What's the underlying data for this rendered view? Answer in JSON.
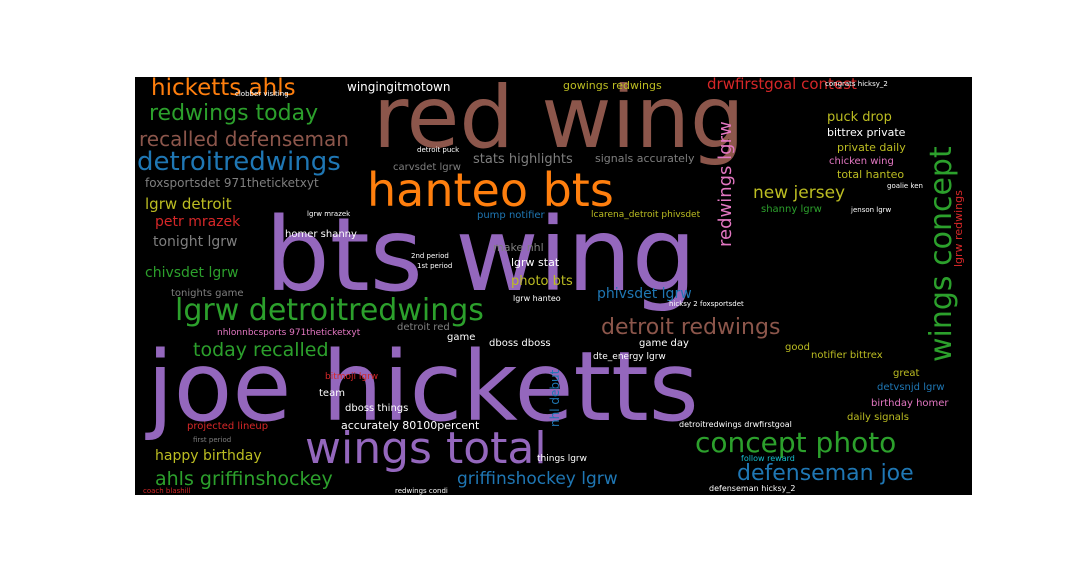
{
  "wordcloud": {
    "background": "#000000",
    "palette": {
      "purple": "#9467bd",
      "brown": "#8c564b",
      "orange": "#ff7f0e",
      "green": "#2ca02c",
      "blue": "#1f77b4",
      "red": "#d62728",
      "gray": "#7f7f7f",
      "olive": "#bcbd22",
      "pink": "#e377c2",
      "cyan": "#17becf"
    },
    "words": {
      "bts_wing": "bts wing",
      "joe_hicketts": "joe hicketts",
      "red_wing": "red wing",
      "hanteo_bts": "hanteo bts",
      "wings_total": "wings total",
      "lgrw_detroitredwings": "lgrw detroitredwings",
      "wings_concept": "wings concept",
      "concept_photo": "concept photo",
      "detroitredwings": "detroitredwings",
      "hicketts_ahls": "hicketts ahls",
      "redwings_today": "redwings today",
      "recalled_defenseman": "recalled defenseman",
      "detroit_redwings": "detroit redwings",
      "defenseman_joe": "defenseman joe",
      "ahls_griffinshockey": "ahls griffinshockey",
      "today_recalled": "today recalled",
      "griffinshockey_lgrw": "griffinshockey lgrw",
      "drwfirstgoal_contest": "drwfirstgoal contest",
      "wingingitmotown": "wingingitmotown",
      "gowings_redwings": "gowings redwings",
      "redwings_lgrw": "redwings lgrw",
      "new_jersey": "new jersey",
      "puck_drop": "puck drop",
      "lgrw_detroit": "lgrw detroit",
      "petr_mrazek": "petr mrazek",
      "tonight_lgrw": "tonight lgrw",
      "chivsdet_lgrw": "chivsdet lgrw",
      "stats_highlights": "stats highlights",
      "signals_accurately": "signals accurately",
      "foxsportsdet": "foxsportsdet 971theticketxyt",
      "happy_birthday": "happy birthday",
      "phivsdet_lgrw": "phivsdet lgrw",
      "bittrex_private": "bittrex private",
      "private_daily": "private daily",
      "chicken_wing": "chicken wing",
      "total_hanteo": "total hanteo",
      "lgrw_redwings": "lgrw redwings",
      "photo_bts": "photo bts",
      "make_nhl": "make nhl",
      "lgrw_stat": "lgrw stat",
      "pump_notifier": "pump notifier",
      "lcarena": "lcarena_detroit phivsdet",
      "shanny_lgrw": "shanny lgrw",
      "homer_shanny": "homer shanny",
      "carvsdet_lgrw": "carvsdet lgrw",
      "tonights_game": "tonights game",
      "nhl_debut": "nhl debut",
      "projected_lineup": "projected lineup",
      "accurately": "accurately 80100percent",
      "game_day": "game day",
      "good": "good",
      "notifier_bittrex": "notifier bittrex",
      "detvsnjd_lgrw": "detvsnjd lgrw",
      "birthday_homer": "birthday homer",
      "daily_signals": "daily signals",
      "great": "great",
      "detroit_red": "detroit red",
      "dbossdboss": "dboss dboss",
      "dboss_things": "dboss things",
      "team": "team",
      "bitmoji_lgrw": "bitmoji lgrw",
      "game": "game",
      "nhlonnbcsports": "nhlonnbcsports 971theticketxyt",
      "dte_energy": "dte_energy lgrw",
      "things_lgrw": "things lgrw",
      "drwfirstgoal2": "detroitredwings drwfirstgoal",
      "follow_reward": "follow reward",
      "defenseman_hicksy": "defenseman hicksy_2",
      "lgrw_hanteo": "lgrw hanteo",
      "first_period": "first period",
      "puck_drop_small": "detroit puck",
      "tiny1": "clobber visiting",
      "tiny2": "coach blashill",
      "tiny3": "redwings condi",
      "tiny4": "congrats hicksy_2",
      "tiny5": "2nd period",
      "tiny6": "1st period",
      "tiny7": "hicksy 2 foxsportsdet",
      "tiny8": "lgrw mrazek",
      "tiny9": "goalie ken",
      "tiny10": "jenson lgrw"
    }
  }
}
